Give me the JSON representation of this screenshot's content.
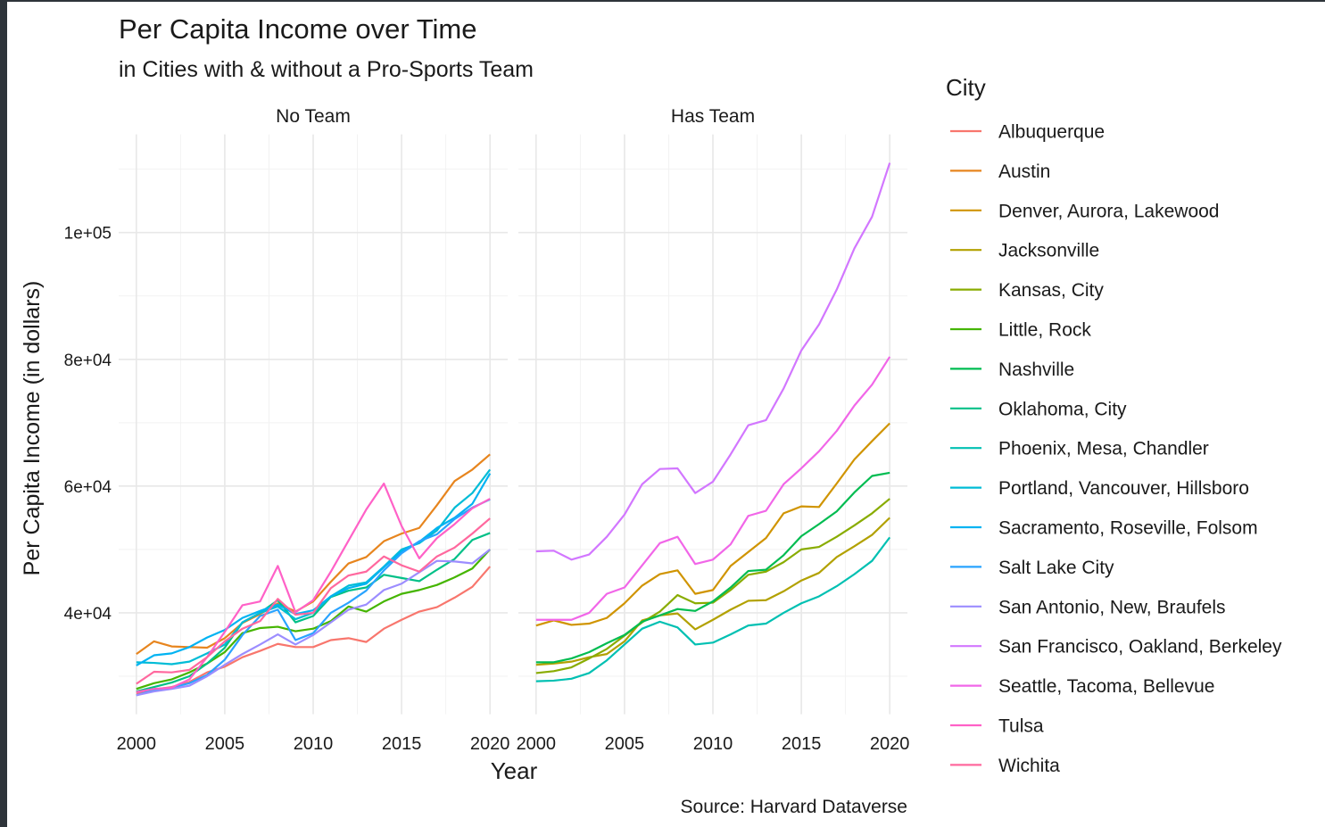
{
  "title": "Per Capita Income over Time",
  "subtitle": "in Cities with & without a Pro-Sports Team",
  "x_label": "Year",
  "y_label": "Per Capita Income (in dollars)",
  "legend_title": "City",
  "caption": "Source: Harvard Dataverse",
  "chart_data": [
    {
      "type": "line",
      "title": "No Team",
      "x": [
        2000,
        2001,
        2002,
        2003,
        2004,
        2005,
        2006,
        2007,
        2008,
        2009,
        2010,
        2011,
        2012,
        2013,
        2014,
        2015,
        2016,
        2017,
        2018,
        2019,
        2020
      ],
      "xlim": [
        1999,
        2021
      ],
      "xticks": [
        2000,
        2005,
        2010,
        2015,
        2020
      ],
      "xminor": [
        2002.5,
        2007.5,
        2012.5,
        2017.5
      ],
      "ylim": [
        24000,
        115500
      ],
      "yticks": [
        {
          "value": 40000,
          "label": "4e+04"
        },
        {
          "value": 60000,
          "label": "6e+04"
        },
        {
          "value": 80000,
          "label": "8e+04"
        },
        {
          "value": 100000,
          "label": "1e+05"
        }
      ],
      "yminor": [
        30000,
        50000,
        70000,
        90000,
        110000
      ],
      "grid": true,
      "series": [
        {
          "name": "Albuquerque",
          "color": "#F8766D",
          "values": [
            27300,
            27900,
            28300,
            29100,
            30600,
            31500,
            33000,
            34000,
            35100,
            34600,
            34600,
            35700,
            36000,
            35400,
            37500,
            38900,
            40200,
            40900,
            42400,
            44100,
            47300
          ]
        },
        {
          "name": "Austin",
          "color": "#E7851E",
          "values": [
            33500,
            35500,
            34700,
            34600,
            34500,
            36000,
            38400,
            39800,
            41500,
            40200,
            41800,
            44900,
            47800,
            48800,
            51300,
            52500,
            53400,
            57000,
            60800,
            62600,
            65000
          ]
        },
        {
          "name": "Little, Rock",
          "color": "#45B500",
          "values": [
            28000,
            28900,
            29500,
            30600,
            32000,
            33800,
            36800,
            37600,
            37800,
            37100,
            37500,
            38700,
            41000,
            40200,
            41800,
            43000,
            43600,
            44400,
            45600,
            47000,
            50000
          ]
        },
        {
          "name": "Oklahoma, City",
          "color": "#00C087",
          "values": [
            27600,
            28300,
            29000,
            30000,
            32000,
            34500,
            38500,
            40000,
            42000,
            38500,
            39500,
            42500,
            43500,
            44000,
            46000,
            45500,
            45000,
            46800,
            48500,
            51500,
            52600
          ]
        },
        {
          "name": "Portland, Vancouver, Hillsboro",
          "color": "#00BCD6",
          "values": [
            32200,
            32100,
            31900,
            32300,
            33600,
            35000,
            38500,
            40000,
            41000,
            39000,
            40000,
            42600,
            44300,
            44800,
            47300,
            50000,
            51000,
            53000,
            56600,
            58900,
            62600
          ]
        },
        {
          "name": "Sacramento, Roseville, Folsom",
          "color": "#00B3F2",
          "values": [
            31700,
            33300,
            33600,
            34600,
            36100,
            37300,
            39200,
            40300,
            41300,
            39800,
            40400,
            42600,
            43900,
            44600,
            47200,
            49700,
            51200,
            53400,
            55000,
            57200,
            62000
          ]
        },
        {
          "name": "Salt Lake City",
          "color": "#29A3FF",
          "values": [
            27000,
            27800,
            28200,
            28900,
            30200,
            32600,
            36500,
            39500,
            40500,
            35700,
            36800,
            40000,
            41600,
            43500,
            46700,
            49400,
            51300,
            52400,
            54800,
            56600,
            57900
          ]
        },
        {
          "name": "San Antonio, New, Braufels",
          "color": "#9C8DFF",
          "values": [
            27000,
            27600,
            28000,
            28500,
            30000,
            31800,
            33500,
            35000,
            36600,
            35000,
            36500,
            38500,
            40500,
            41300,
            43600,
            44600,
            46400,
            48200,
            48100,
            47800,
            50000
          ]
        },
        {
          "name": "Tulsa",
          "color": "#FF61C7",
          "values": [
            27500,
            28000,
            28200,
            29500,
            33000,
            37000,
            41200,
            41800,
            47400,
            40100,
            42000,
            46500,
            51400,
            56300,
            60400,
            53700,
            48600,
            51800,
            54000,
            56500,
            58000
          ]
        },
        {
          "name": "Wichita",
          "color": "#FF689E",
          "values": [
            28800,
            30700,
            30600,
            31000,
            33000,
            35500,
            37500,
            38700,
            42200,
            39700,
            40000,
            43900,
            45900,
            46500,
            48900,
            47500,
            46500,
            48900,
            50300,
            52500,
            54900
          ]
        }
      ]
    },
    {
      "type": "line",
      "title": "Has Team",
      "x": [
        2000,
        2001,
        2002,
        2003,
        2004,
        2005,
        2006,
        2007,
        2008,
        2009,
        2010,
        2011,
        2012,
        2013,
        2014,
        2015,
        2016,
        2017,
        2018,
        2019,
        2020
      ],
      "xlim": [
        1999,
        2021
      ],
      "xticks": [
        2000,
        2005,
        2010,
        2015,
        2020
      ],
      "xminor": [
        2002.5,
        2007.5,
        2012.5,
        2017.5
      ],
      "series": [
        {
          "name": "Denver, Aurora, Lakewood",
          "color": "#D09400",
          "values": [
            38000,
            38800,
            38100,
            38300,
            39200,
            41500,
            44300,
            46100,
            46700,
            43000,
            43600,
            47400,
            49600,
            51800,
            55700,
            56800,
            56700,
            60400,
            64200,
            67100,
            69900
          ]
        },
        {
          "name": "Jacksonville",
          "color": "#B2A100",
          "values": [
            31800,
            32000,
            32300,
            33000,
            33500,
            35500,
            38800,
            39600,
            39900,
            37400,
            38900,
            40500,
            41900,
            42000,
            43400,
            45100,
            46300,
            48800,
            50500,
            52300,
            55000
          ]
        },
        {
          "name": "Kansas, City",
          "color": "#89AC00",
          "values": [
            30500,
            30800,
            31400,
            32800,
            34300,
            36400,
            38500,
            40200,
            42800,
            41500,
            41600,
            43600,
            46000,
            46500,
            48000,
            50000,
            50400,
            52000,
            53800,
            55700,
            58000
          ]
        },
        {
          "name": "Nashville",
          "color": "#00BC51",
          "values": [
            32200,
            32200,
            32800,
            33800,
            35200,
            36500,
            38600,
            39600,
            40600,
            40300,
            41800,
            44000,
            46600,
            46800,
            49100,
            52100,
            54000,
            56000,
            59000,
            61600,
            62100
          ]
        },
        {
          "name": "Phoenix, Mesa, Chandler",
          "color": "#00C0B2",
          "values": [
            29200,
            29300,
            29600,
            30500,
            32500,
            35000,
            37500,
            38600,
            37700,
            35000,
            35300,
            36600,
            38000,
            38300,
            40000,
            41500,
            42600,
            44200,
            46100,
            48200,
            51900
          ]
        },
        {
          "name": "San Francisco, Oakland, Berkeley",
          "color": "#D277FF",
          "values": [
            49700,
            49800,
            48400,
            49200,
            52000,
            55500,
            60300,
            62700,
            62800,
            58900,
            60700,
            65000,
            69600,
            70400,
            75400,
            81400,
            85500,
            91000,
            97500,
            102500,
            111000
          ]
        },
        {
          "name": "Seattle, Tacoma, Bellevue",
          "color": "#F166E8",
          "values": [
            38900,
            38900,
            38900,
            40000,
            43000,
            44000,
            47500,
            51000,
            52000,
            47700,
            48400,
            50800,
            55300,
            56100,
            60300,
            62800,
            65500,
            68700,
            72700,
            76000,
            80400
          ]
        }
      ]
    }
  ]
}
